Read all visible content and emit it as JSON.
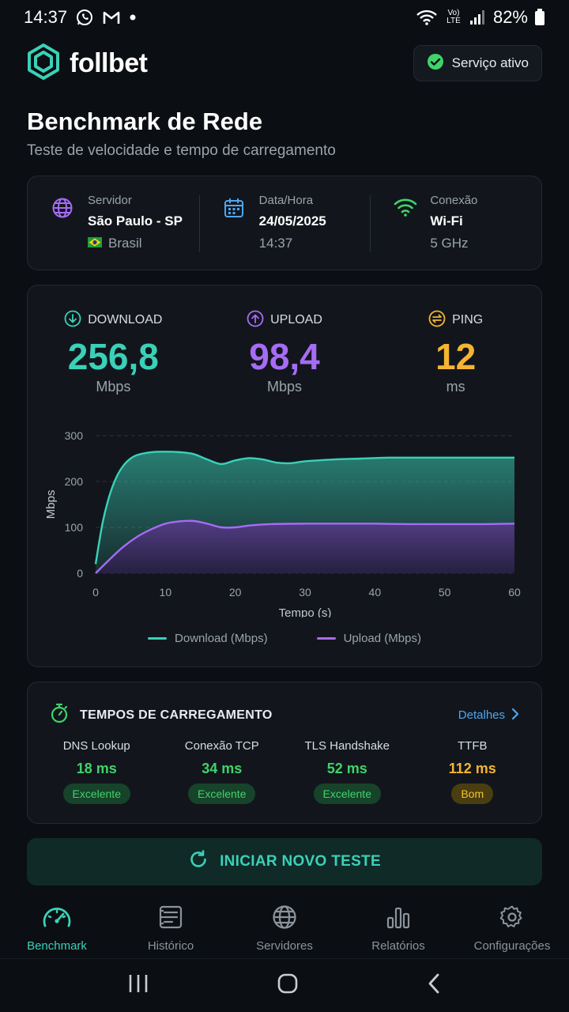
{
  "statusbar": {
    "time": "14:37",
    "battery": "82%",
    "network_label": "Vo) LTE"
  },
  "header": {
    "brand": "follbet",
    "service_status": "Serviço ativo"
  },
  "page": {
    "title": "Benchmark de Rede",
    "subtitle": "Teste de velocidade e tempo de carregamento"
  },
  "info": {
    "server": {
      "label": "Servidor",
      "value": "São Paulo - SP",
      "sub": "Brasil"
    },
    "datetime": {
      "label": "Data/Hora",
      "value": "24/05/2025",
      "sub": "14:37"
    },
    "connection": {
      "label": "Conexão",
      "value": "Wi-Fi",
      "sub": "5 GHz"
    }
  },
  "metrics": {
    "download": {
      "label": "DOWNLOAD",
      "value": "256,8",
      "unit": "Mbps",
      "color": "#3ad1b8"
    },
    "upload": {
      "label": "UPLOAD",
      "value": "98,4",
      "unit": "Mbps",
      "color": "#a66cf5"
    },
    "ping": {
      "label": "PING",
      "value": "12",
      "unit": "ms",
      "color": "#f5b431"
    }
  },
  "chart_data": {
    "type": "area",
    "xlabel": "Tempo (s)",
    "ylabel": "Mbps",
    "xlim": [
      0,
      60
    ],
    "ylim": [
      0,
      300
    ],
    "xticks": [
      0,
      10,
      20,
      30,
      40,
      50,
      60
    ],
    "yticks": [
      0,
      100,
      200,
      300
    ],
    "grid": true,
    "legend": "bottom",
    "series": [
      {
        "name": "Download (Mbps)",
        "color": "#3ad1b8",
        "x": [
          0,
          1,
          2,
          3,
          4,
          5,
          6,
          8,
          10,
          12,
          14,
          16,
          18,
          20,
          22,
          24,
          26,
          28,
          30,
          34,
          38,
          42,
          46,
          50,
          55,
          60
        ],
        "y": [
          20,
          110,
          170,
          210,
          235,
          250,
          258,
          264,
          265,
          264,
          260,
          248,
          238,
          246,
          251,
          248,
          241,
          240,
          244,
          248,
          250,
          252,
          252,
          252,
          252,
          252
        ]
      },
      {
        "name": "Upload (Mbps)",
        "color": "#a66cf5",
        "x": [
          0,
          2,
          4,
          6,
          8,
          10,
          12,
          14,
          16,
          18,
          20,
          22,
          25,
          30,
          35,
          40,
          45,
          50,
          55,
          60
        ],
        "y": [
          0,
          30,
          58,
          80,
          96,
          108,
          113,
          114,
          108,
          100,
          100,
          104,
          107,
          108,
          108,
          108,
          107,
          107,
          107,
          108
        ]
      }
    ]
  },
  "loadtimes": {
    "title": "TEMPOS DE CARREGAMENTO",
    "details": "Detalhes",
    "items": [
      {
        "name": "DNS Lookup",
        "value": "18 ms",
        "rating": "Excelente",
        "color": "#3fd36a"
      },
      {
        "name": "Conexão TCP",
        "value": "34 ms",
        "rating": "Excelente",
        "color": "#3fd36a"
      },
      {
        "name": "TLS Handshake",
        "value": "52 ms",
        "rating": "Excelente",
        "color": "#3fd36a"
      },
      {
        "name": "TTFB",
        "value": "112 ms",
        "rating": "Bom",
        "color": "#f5b431"
      }
    ]
  },
  "start_button": "INICIAR NOVO TESTE",
  "nav": [
    {
      "label": "Benchmark",
      "icon": "gauge-icon",
      "active": true
    },
    {
      "label": "Histórico",
      "icon": "history-icon",
      "active": false
    },
    {
      "label": "Servidores",
      "icon": "globe-icon",
      "active": false
    },
    {
      "label": "Relatórios",
      "icon": "bar-chart-icon",
      "active": false
    },
    {
      "label": "Configurações",
      "icon": "gear-icon",
      "active": false
    }
  ]
}
